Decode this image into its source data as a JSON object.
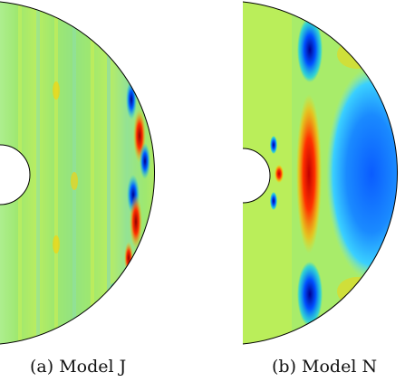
{
  "figure": {
    "panels": [
      {
        "id": "a",
        "caption": "(a) Model J",
        "background": "#9fe870"
      },
      {
        "id": "b",
        "caption": "(b) Model N",
        "background": "#a8ec6a"
      }
    ],
    "colormap": [
      "#00008f",
      "#0060ff",
      "#00c8ff",
      "#9fe870",
      "#ffd000",
      "#ff3000",
      "#8f0000"
    ]
  }
}
